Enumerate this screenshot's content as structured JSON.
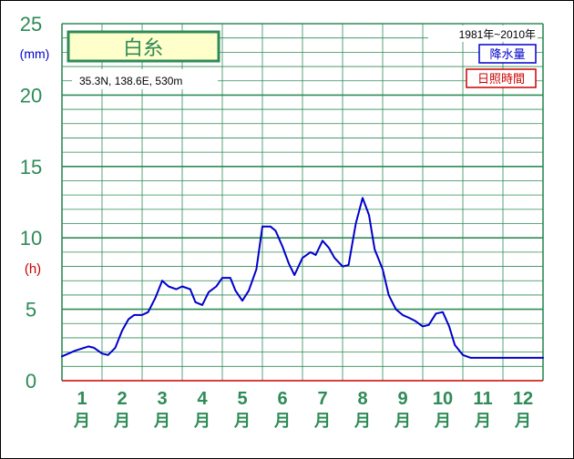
{
  "chart_data": {
    "type": "line",
    "title": "白糸",
    "location": "35.3N,  138.6E,  530m",
    "period": "1981年~2010年",
    "legend": [
      {
        "label": "降水量",
        "color": "#0000cc"
      },
      {
        "label": "日照時間",
        "color": "#cc0000"
      }
    ],
    "y_unit_left": "(mm)",
    "y_unit_right": "(h)",
    "ylim": [
      0,
      25
    ],
    "yticks": [
      {
        "v": 0,
        "label": "0"
      },
      {
        "v": 5,
        "label": "5"
      },
      {
        "v": 10,
        "label": "10"
      },
      {
        "v": 15,
        "label": "15"
      },
      {
        "v": 20,
        "label": "20"
      },
      {
        "v": 25,
        "label": "25"
      }
    ],
    "months": [
      {
        "num": "1",
        "unit": "月"
      },
      {
        "num": "2",
        "unit": "月"
      },
      {
        "num": "3",
        "unit": "月"
      },
      {
        "num": "4",
        "unit": "月"
      },
      {
        "num": "5",
        "unit": "月"
      },
      {
        "num": "6",
        "unit": "月"
      },
      {
        "num": "7",
        "unit": "月"
      },
      {
        "num": "8",
        "unit": "月"
      },
      {
        "num": "9",
        "unit": "月"
      },
      {
        "num": "10",
        "unit": "月"
      },
      {
        "num": "11",
        "unit": "月"
      },
      {
        "num": "12",
        "unit": "月"
      }
    ],
    "xlim": [
      0,
      12
    ],
    "grid": true,
    "series": [
      {
        "name": "降水量",
        "color": "#0000cc",
        "x": [
          0,
          0.33,
          0.66,
          0.8,
          1.0,
          1.15,
          1.33,
          1.5,
          1.66,
          1.8,
          2.0,
          2.15,
          2.33,
          2.5,
          2.66,
          2.85,
          3.0,
          3.2,
          3.33,
          3.5,
          3.66,
          3.85,
          4.0,
          4.2,
          4.33,
          4.5,
          4.66,
          4.85,
          5.0,
          5.2,
          5.33,
          5.5,
          5.66,
          5.8,
          6.0,
          6.2,
          6.33,
          6.5,
          6.66,
          6.8,
          7.0,
          7.15,
          7.33,
          7.5,
          7.66,
          7.8,
          8.0,
          8.15,
          8.33,
          8.5,
          8.66,
          8.8,
          9.0,
          9.15,
          9.33,
          9.5,
          9.66,
          9.8,
          10.0,
          10.2,
          10.33,
          10.5,
          10.66,
          10.8,
          11.0,
          11.2,
          11.33,
          11.5,
          11.66,
          11.8,
          12.0
        ],
        "values": [
          1.7,
          2.1,
          2.4,
          2.3,
          1.9,
          1.8,
          2.3,
          3.5,
          4.3,
          4.6,
          4.6,
          4.8,
          5.8,
          7.0,
          6.6,
          6.4,
          6.6,
          6.4,
          5.5,
          5.3,
          6.2,
          6.6,
          7.2,
          7.2,
          6.3,
          5.6,
          6.3,
          7.8,
          10.8,
          10.8,
          10.5,
          9.4,
          8.2,
          7.4,
          8.6,
          9.0,
          8.8,
          9.8,
          9.3,
          8.6,
          8.0,
          8.1,
          11.0,
          12.8,
          11.6,
          9.2,
          7.8,
          6.0,
          5.0,
          4.6,
          4.4,
          4.2,
          3.8,
          3.9,
          4.7,
          4.8,
          3.8,
          2.5,
          1.8,
          1.6,
          1.6,
          1.6,
          1.6,
          1.6,
          1.6,
          1.6,
          1.6,
          1.6,
          1.6,
          1.6,
          1.6
        ]
      }
    ]
  }
}
